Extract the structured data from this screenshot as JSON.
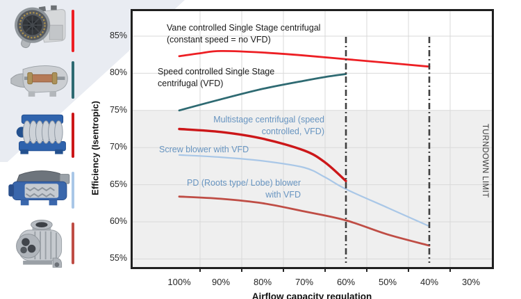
{
  "left_panel": {
    "machines": [
      {
        "icon": "single-stage-turbo-blower-image",
        "bar_color": "#ed1f24"
      },
      {
        "icon": "speed-controlled-centrifugal-cutaway-image",
        "bar_color": "#2e6a72"
      },
      {
        "icon": "multistage-centrifugal-blower-image",
        "bar_color": "#cc1719"
      },
      {
        "icon": "screw-blower-cutaway-image",
        "bar_color": "#a9c7e7"
      },
      {
        "icon": "roots-lobe-blower-image",
        "bar_color": "#bf4d45"
      }
    ]
  },
  "chart": {
    "y_axis_title": "Efficiency (Isentropic)",
    "x_axis_title": "Airflow capacity regulation",
    "turndown_label": "TURNDOWN LIMIT",
    "labels": {
      "vane_line1": "Vane controlled Single Stage centrifugal",
      "vane_line2": "(constant speed = no VFD)",
      "speed_line1": "Speed controlled Single Stage",
      "speed_line2": "centrifugal (VFD)",
      "multistage_line1": "Multistage centrifugal (speed",
      "multistage_line2": "controlled, VFD)",
      "screw_line1": "Screw blower with VFD",
      "pd_line1": "PD (Roots type/ Lobe) blower",
      "pd_line2": "with VFD"
    },
    "colors": {
      "label_blue": "#6794c0",
      "label_black": "#1a1a1a",
      "grid": "#d9d9d9",
      "shaded_band": "#efefef",
      "turndown_line": "#3f3f3f",
      "plot_border": "#1f1f1f"
    }
  },
  "chart_data": {
    "type": "line",
    "title": "",
    "xlabel": "Airflow capacity regulation",
    "ylabel": "Efficiency (Isentropic)",
    "x_axis_reversed": true,
    "x_tick_labels": [
      "100%",
      "90%",
      "80%",
      "70%",
      "60%",
      "50%",
      "40%",
      "30%"
    ],
    "x_tick_values": [
      100,
      90,
      80,
      70,
      60,
      50,
      40,
      30
    ],
    "y_tick_labels": [
      "85%",
      "80%",
      "75%",
      "70%",
      "65%",
      "60%",
      "55%"
    ],
    "y_tick_values": [
      85,
      80,
      75,
      70,
      65,
      60,
      55
    ],
    "grid": true,
    "legend": "labels drawn next to lines inside plot",
    "shaded_band_efficiency_range": [
      55,
      75
    ],
    "turndown_limit_lines_at_airflow": [
      60,
      40
    ],
    "series": [
      {
        "name": "vane_controlled_single_stage_centrifugal_no_vfd",
        "label": "Vane controlled Single Stage centrifugal (constant speed = no VFD)",
        "color": "#ed1f24",
        "width": 2.8,
        "points": [
          [
            100,
            82.3
          ],
          [
            95,
            82.7
          ],
          [
            90,
            83.0
          ],
          [
            80,
            82.8
          ],
          [
            70,
            82.4
          ],
          [
            60,
            81.9
          ],
          [
            50,
            81.4
          ],
          [
            40,
            80.9
          ]
        ]
      },
      {
        "name": "speed_controlled_single_stage_centrifugal_vfd",
        "label": "Speed controlled Single Stage centrifugal (VFD)",
        "color": "#2e6a72",
        "width": 2.8,
        "points": [
          [
            100,
            75.0
          ],
          [
            90,
            76.5
          ],
          [
            80,
            77.9
          ],
          [
            70,
            79.0
          ],
          [
            65,
            79.5
          ],
          [
            60,
            79.9
          ]
        ]
      },
      {
        "name": "multistage_centrifugal_speed_controlled_vfd",
        "label": "Multistage centrifugal (speed controlled, VFD)",
        "color": "#cc1719",
        "width": 3.4,
        "points": [
          [
            100,
            72.5
          ],
          [
            90,
            72.1
          ],
          [
            80,
            71.2
          ],
          [
            70,
            69.6
          ],
          [
            65,
            68.0
          ],
          [
            60,
            65.5
          ]
        ]
      },
      {
        "name": "screw_blower_with_vfd",
        "label": "Screw blower with VFD",
        "color": "#a9c7e7",
        "width": 2.2,
        "points": [
          [
            100,
            69.0
          ],
          [
            90,
            68.7
          ],
          [
            80,
            68.2
          ],
          [
            70,
            67.3
          ],
          [
            65,
            66.0
          ],
          [
            60,
            64.4
          ],
          [
            50,
            61.9
          ],
          [
            40,
            59.4
          ]
        ]
      },
      {
        "name": "pd_roots_lobe_blower_with_vfd",
        "label": "PD (Roots type/ Lobe) blower with VFD",
        "color": "#bf4d45",
        "width": 2.8,
        "points": [
          [
            100,
            63.4
          ],
          [
            90,
            63.1
          ],
          [
            80,
            62.5
          ],
          [
            70,
            61.4
          ],
          [
            60,
            60.2
          ],
          [
            50,
            58.3
          ],
          [
            40,
            56.8
          ]
        ]
      }
    ]
  }
}
